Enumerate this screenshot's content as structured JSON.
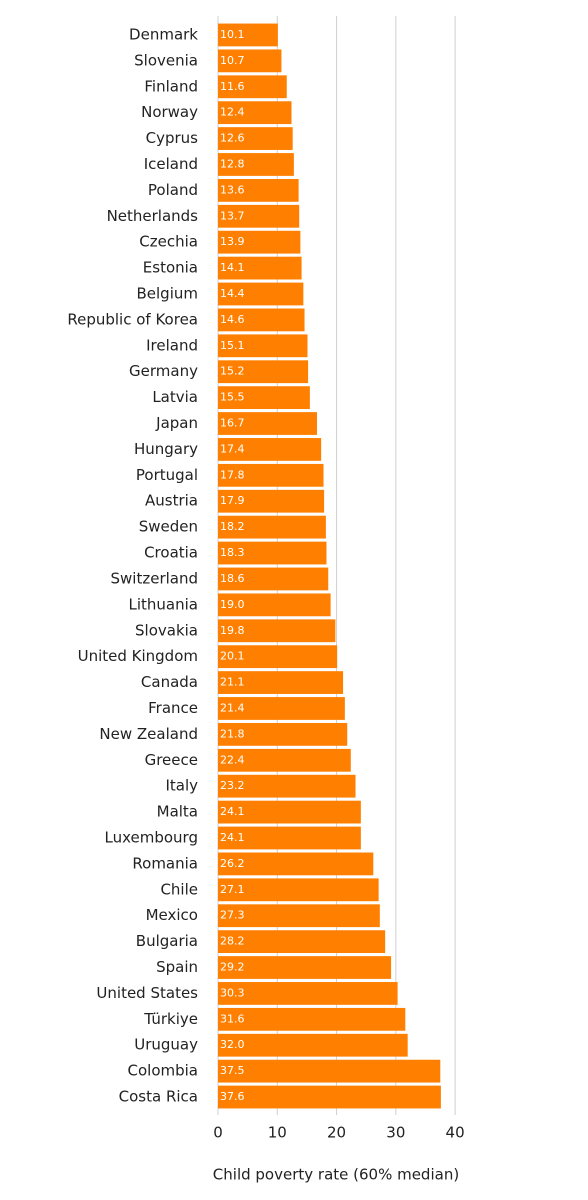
{
  "chart_data": {
    "type": "bar",
    "orientation": "horizontal",
    "x_label": "Child poverty rate (60% median)",
    "categories": [
      "Denmark",
      "Slovenia",
      "Finland",
      "Norway",
      "Cyprus",
      "Iceland",
      "Poland",
      "Netherlands",
      "Czechia",
      "Estonia",
      "Belgium",
      "Republic of Korea",
      "Ireland",
      "Germany",
      "Latvia",
      "Japan",
      "Hungary",
      "Portugal",
      "Austria",
      "Sweden",
      "Croatia",
      "Switzerland",
      "Lithuania",
      "Slovakia",
      "United Kingdom",
      "Canada",
      "France",
      "New Zealand",
      "Greece",
      "Italy",
      "Malta",
      "Luxembourg",
      "Romania",
      "Chile",
      "Mexico",
      "Bulgaria",
      "Spain",
      "United States",
      "Türkiye",
      "Uruguay",
      "Colombia",
      "Costa Rica"
    ],
    "values": [
      10.1,
      10.7,
      11.6,
      12.4,
      12.6,
      12.8,
      13.6,
      13.7,
      13.9,
      14.1,
      14.4,
      14.6,
      15.1,
      15.2,
      15.5,
      16.7,
      17.4,
      17.8,
      17.9,
      18.2,
      18.3,
      18.6,
      19.0,
      19.8,
      20.1,
      21.1,
      21.4,
      21.8,
      22.4,
      23.2,
      24.1,
      24.1,
      26.2,
      27.1,
      27.3,
      28.2,
      29.2,
      30.3,
      31.6,
      32.0,
      37.5,
      37.6
    ],
    "value_labels": [
      "10.1",
      "10.7",
      "11.6",
      "12.4",
      "12.6",
      "12.8",
      "13.6",
      "13.7",
      "13.9",
      "14.1",
      "14.4",
      "14.6",
      "15.1",
      "15.2",
      "15.5",
      "16.7",
      "17.4",
      "17.8",
      "17.9",
      "18.2",
      "18.3",
      "18.6",
      "19.0",
      "19.8",
      "20.1",
      "21.1",
      "21.4",
      "21.8",
      "22.4",
      "23.2",
      "24.1",
      "24.1",
      "26.2",
      "27.1",
      "27.3",
      "28.2",
      "29.2",
      "30.3",
      "31.6",
      "32.0",
      "37.5",
      "37.6"
    ],
    "color": "#ff8000",
    "xlim": [
      0,
      41.5
    ],
    "xticks": [
      0,
      10,
      20,
      30,
      40
    ],
    "grid": true
  }
}
